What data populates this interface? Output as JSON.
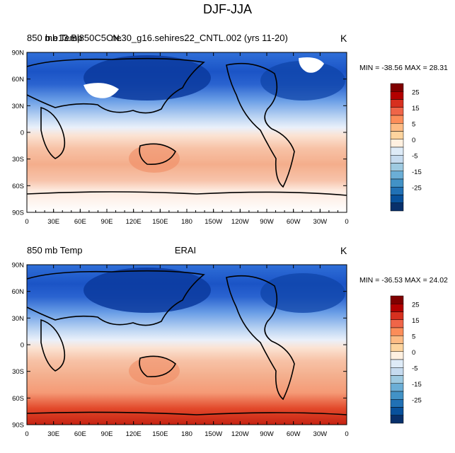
{
  "title": "DJF-JJA",
  "panels": [
    {
      "left_label": "850 mb Temp",
      "center_label": "ne30_g16.sehires22_CNTL.002 (yrs 11-20)",
      "overlap_label": "b.e13.Bl850C5CN.",
      "unit": "K",
      "stats": "MIN = -38.56 MAX =  28.31"
    },
    {
      "left_label": "850 mb Temp",
      "center_label": "ERAI",
      "unit": "K",
      "stats": "MIN = -36.53 MAX =  24.02"
    }
  ],
  "map": {
    "x_ticks": [
      "0",
      "30E",
      "60E",
      "90E",
      "120E",
      "150E",
      "180",
      "150W",
      "120W",
      "90W",
      "60W",
      "30W",
      "0"
    ],
    "y_ticks": [
      "90N",
      "60N",
      "30N",
      "0",
      "30S",
      "60S",
      "90S"
    ]
  },
  "colorbar": {
    "labels": [
      "25",
      "15",
      "5",
      "0",
      "-5",
      "-15",
      "-25"
    ],
    "colors": [
      "#800000",
      "#b30000",
      "#d7301f",
      "#ef6548",
      "#fc8d59",
      "#fdbb84",
      "#fdd49e",
      "#fff0e0",
      "#deebf7",
      "#c6dbef",
      "#9ecae1",
      "#6baed6",
      "#4292c6",
      "#2171b5",
      "#08519c",
      "#08306b"
    ]
  }
}
